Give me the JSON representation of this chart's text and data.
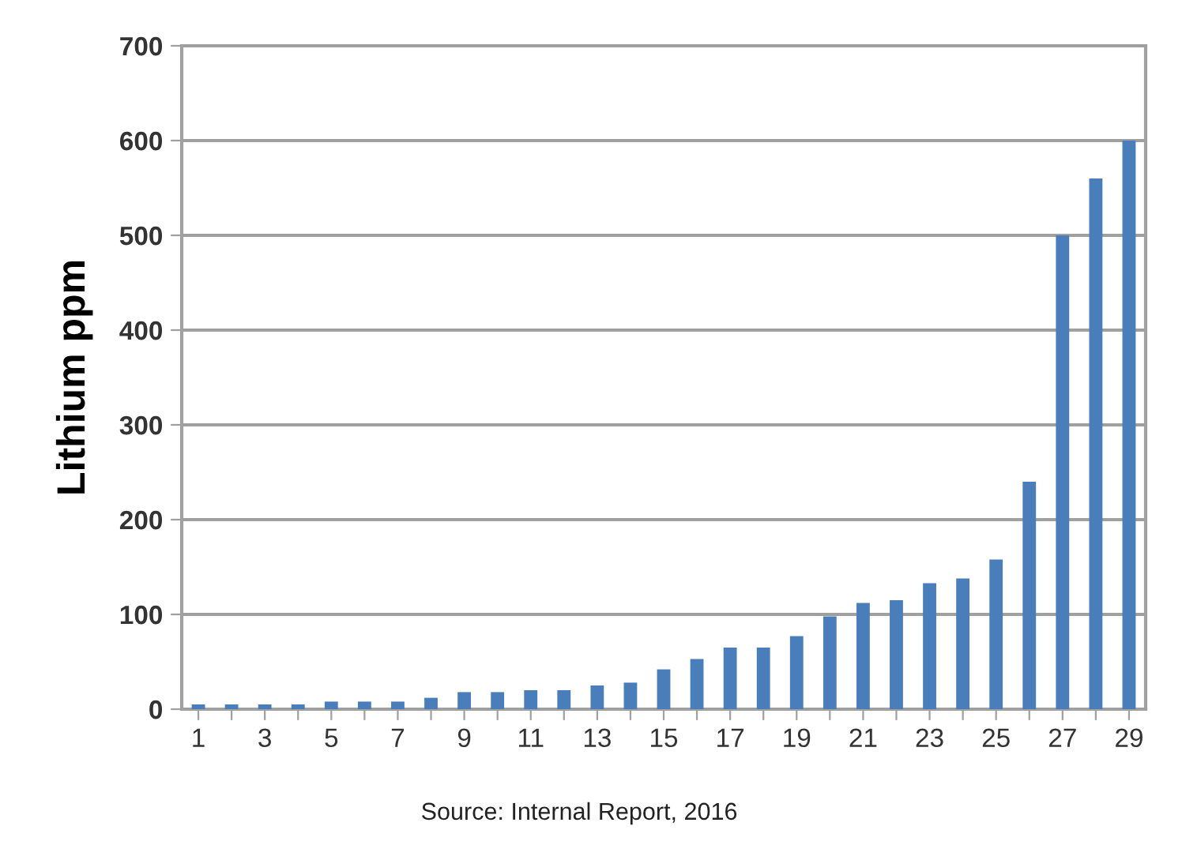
{
  "chart_data": {
    "type": "bar",
    "ylabel": "Lithium ppm",
    "categories": [
      "1",
      null,
      "3",
      null,
      "5",
      null,
      "7",
      null,
      "9",
      null,
      "11",
      null,
      "13",
      null,
      "15",
      null,
      "17",
      null,
      "19",
      null,
      "21",
      null,
      "23",
      null,
      "25",
      null,
      "27",
      null,
      "29"
    ],
    "series": [
      {
        "color": "#4a7ebb",
        "values": [
          5,
          5,
          5,
          5,
          8,
          8,
          8,
          12,
          18,
          18,
          20,
          20,
          25,
          28,
          42,
          53,
          65,
          65,
          77,
          98,
          112,
          115,
          133,
          138,
          158,
          240,
          500,
          560,
          600
        ]
      }
    ],
    "ylim": [
      0,
      700
    ],
    "yticks": [
      0,
      100,
      200,
      300,
      400,
      500,
      600,
      700
    ],
    "grid": "y",
    "legend": false,
    "annotations": [
      "Source: Internal Report, 2016"
    ]
  }
}
